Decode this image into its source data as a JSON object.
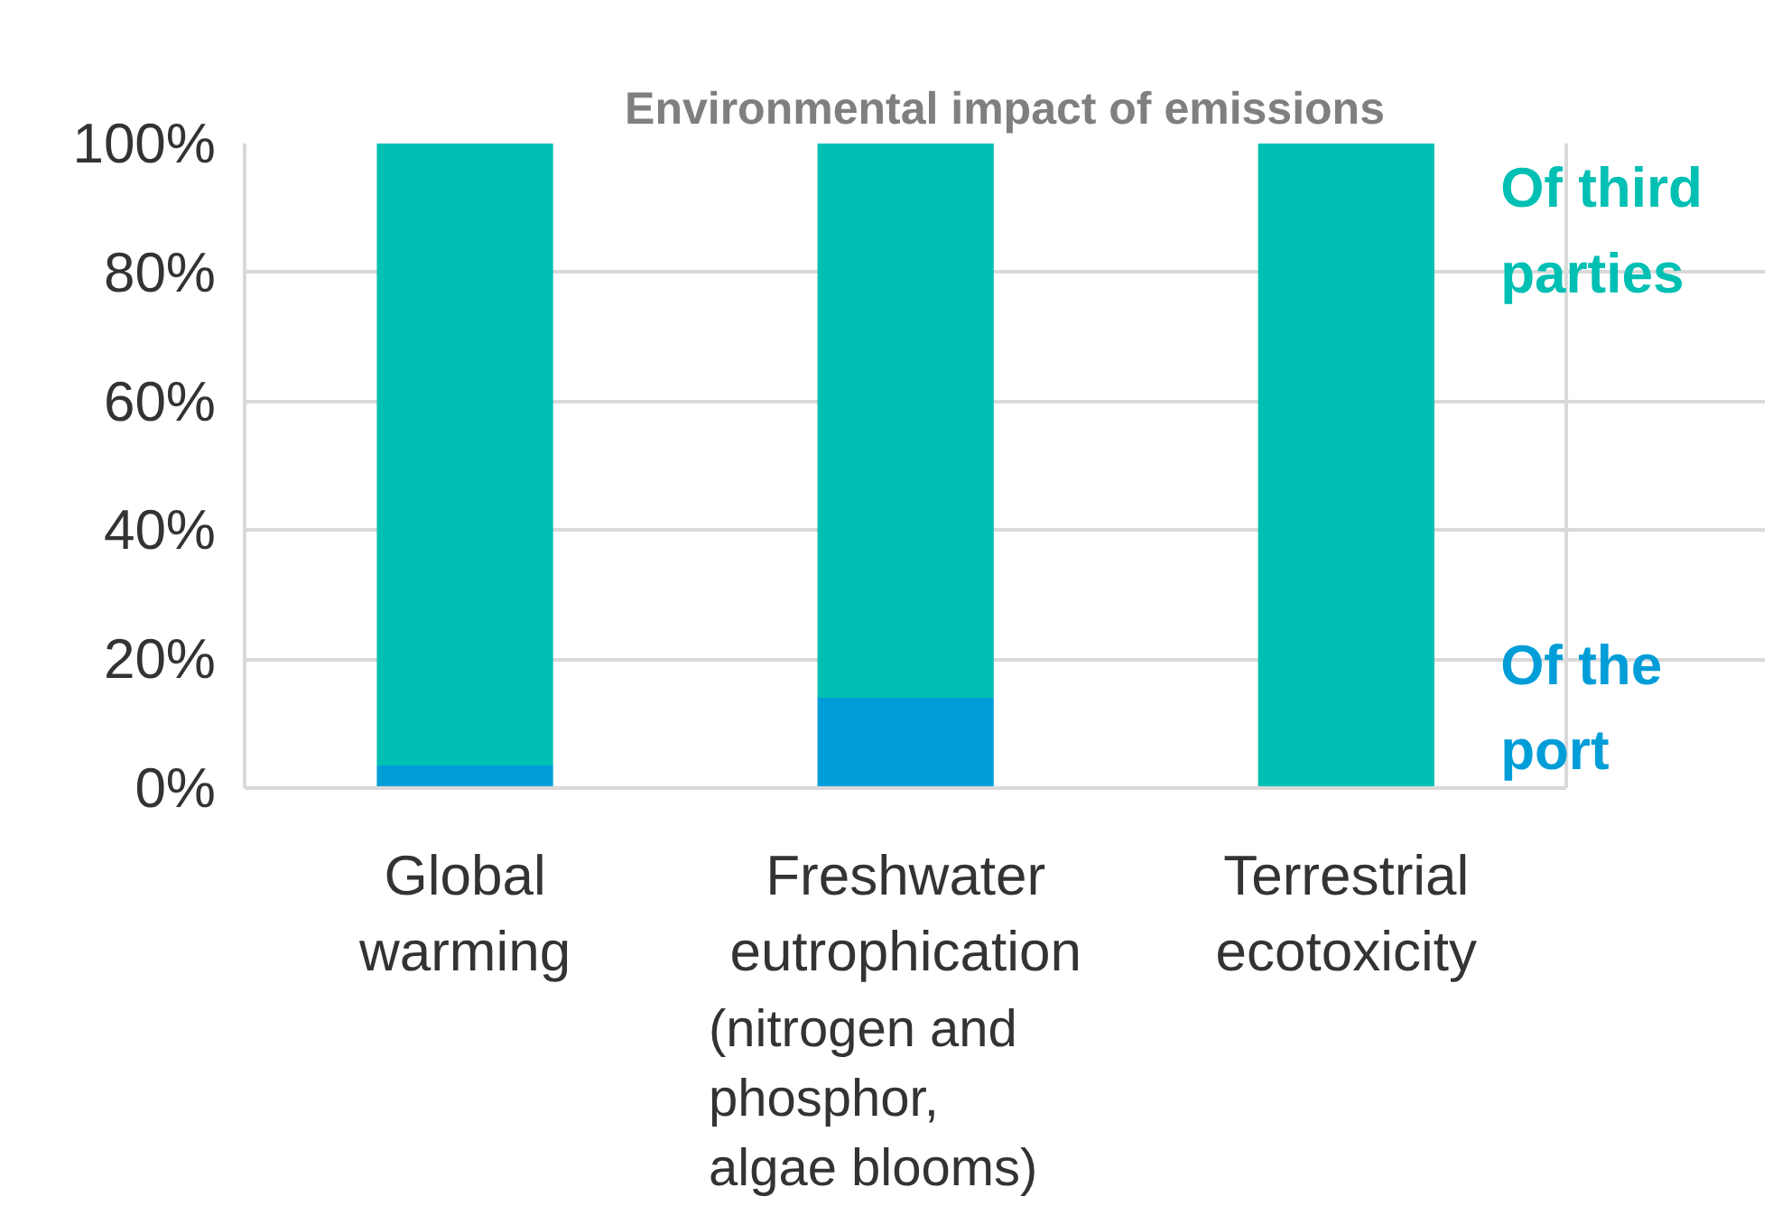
{
  "chart_data": {
    "type": "bar",
    "stacked": true,
    "title": "Environmental impact of emissions",
    "categories": [
      "Global\nwarming",
      "Freshwater\neutrophication",
      "Terrestrial\necotoxicity"
    ],
    "series": [
      {
        "name": "Of the\nport",
        "color": "#009ed8",
        "values": [
          3.5,
          14,
          null
        ]
      },
      {
        "name": "Of third\nparties",
        "color": "#00bfb3",
        "values": [
          96.5,
          86,
          100
        ]
      }
    ],
    "ylim": [
      0,
      100
    ],
    "yticks": [
      {
        "value": 0,
        "label": "0%"
      },
      {
        "value": 20,
        "label": "20%"
      },
      {
        "value": 40,
        "label": "40%"
      },
      {
        "value": 60,
        "label": "60%"
      },
      {
        "value": 80,
        "label": "80%"
      },
      {
        "value": 100,
        "label": "100%"
      }
    ],
    "grid": "y",
    "legend": false,
    "annotations": [
      "(nitrogen and\nphosphor,\nalgae blooms)"
    ]
  }
}
